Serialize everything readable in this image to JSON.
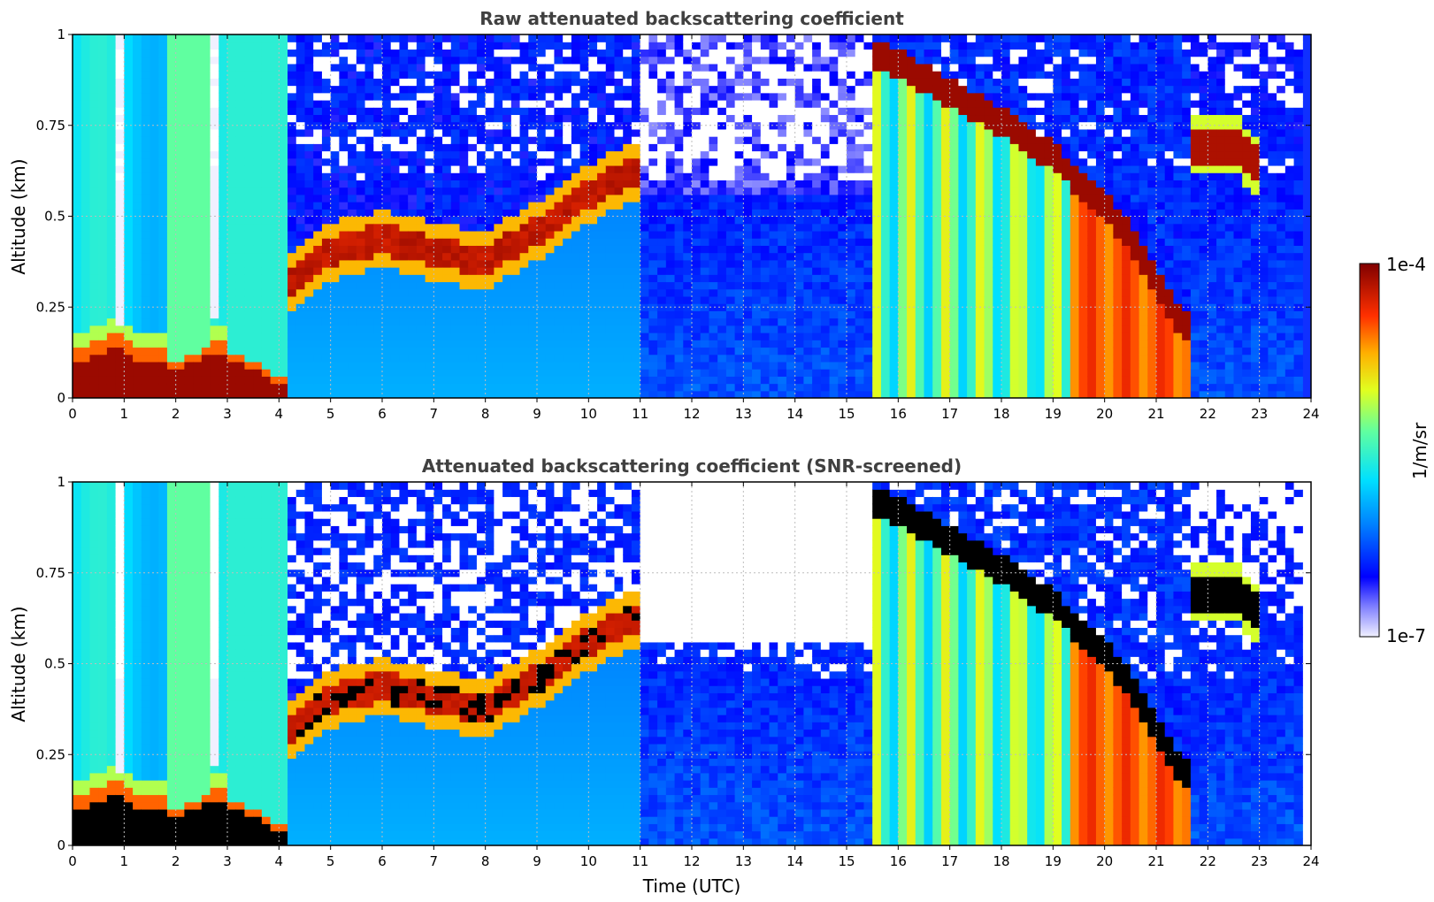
{
  "chart_data": [
    {
      "type": "heatmap",
      "title": "Raw attenuated backscattering coefficient",
      "xlabel": "",
      "ylabel": "Altitude (km)",
      "xlim": [
        0,
        24
      ],
      "ylim": [
        0,
        1
      ],
      "x_ticks": [
        0,
        1,
        2,
        3,
        4,
        5,
        6,
        7,
        8,
        9,
        10,
        11,
        12,
        13,
        14,
        15,
        16,
        17,
        18,
        19,
        20,
        21,
        22,
        23,
        24
      ],
      "y_ticks": [
        0,
        0.25,
        0.5,
        0.75,
        1
      ],
      "y_tick_labels": [
        "0",
        "0.25",
        "0.5",
        "0.75",
        "1"
      ],
      "grid": true,
      "screened": false,
      "features": [
        {
          "kind": "boundary_layer_top",
          "x": [
            0,
            0.5,
            0.8,
            1.2,
            1.6,
            2.0,
            2.4,
            2.8,
            3.2,
            3.6,
            4.0
          ],
          "y": [
            0.12,
            0.14,
            0.16,
            0.13,
            0.12,
            0.1,
            0.12,
            0.15,
            0.12,
            0.1,
            0.06
          ]
        },
        {
          "kind": "elevated_layer",
          "x": [
            4.3,
            5,
            6,
            7,
            8,
            9,
            10,
            10.8
          ],
          "y": [
            0.32,
            0.4,
            0.44,
            0.4,
            0.38,
            0.46,
            0.56,
            0.62
          ]
        },
        {
          "kind": "descending_cloud",
          "x": [
            15.6,
            16.5,
            17.5,
            18.5,
            19.5,
            20.5,
            21.5
          ],
          "y": [
            0.95,
            0.88,
            0.8,
            0.72,
            0.6,
            0.45,
            0.2
          ]
        },
        {
          "kind": "cloud_patch",
          "x": [
            22,
            22.5,
            23
          ],
          "y": [
            0.7,
            0.7,
            0.64
          ]
        }
      ]
    },
    {
      "type": "heatmap",
      "title": "Attenuated backscattering coefficient (SNR-screened)",
      "xlabel": "Time (UTC)",
      "ylabel": "Altitude (km)",
      "xlim": [
        0,
        24
      ],
      "ylim": [
        0,
        1
      ],
      "x_ticks": [
        0,
        1,
        2,
        3,
        4,
        5,
        6,
        7,
        8,
        9,
        10,
        11,
        12,
        13,
        14,
        15,
        16,
        17,
        18,
        19,
        20,
        21,
        22,
        23,
        24
      ],
      "y_ticks": [
        0,
        0.25,
        0.5,
        0.75,
        1
      ],
      "y_tick_labels": [
        "0",
        "0.25",
        "0.5",
        "0.75",
        "1"
      ],
      "grid": true,
      "screened": true,
      "features": [
        {
          "kind": "boundary_layer_top",
          "x": [
            0,
            0.5,
            0.8,
            1.2,
            1.6,
            2.0,
            2.4,
            2.8,
            3.2,
            3.6,
            4.0
          ],
          "y": [
            0.12,
            0.14,
            0.16,
            0.13,
            0.12,
            0.1,
            0.12,
            0.15,
            0.12,
            0.1,
            0.06
          ]
        },
        {
          "kind": "elevated_layer",
          "x": [
            4.3,
            5,
            6,
            7,
            8,
            9,
            10,
            10.8
          ],
          "y": [
            0.32,
            0.4,
            0.44,
            0.4,
            0.38,
            0.46,
            0.56,
            0.62
          ]
        },
        {
          "kind": "descending_cloud",
          "x": [
            15.6,
            16.5,
            17.5,
            18.5,
            19.5,
            20.5,
            21.5
          ],
          "y": [
            0.95,
            0.88,
            0.8,
            0.72,
            0.6,
            0.45,
            0.2
          ]
        },
        {
          "kind": "cloud_patch",
          "x": [
            22,
            22.5,
            23
          ],
          "y": [
            0.7,
            0.7,
            0.64
          ]
        }
      ]
    }
  ],
  "colorbar": {
    "label": "1/m/sr",
    "max_label": "1e-4",
    "min_label": "1e-7",
    "scale": "log",
    "range": [
      1e-07,
      0.0001
    ],
    "colormap": "jet"
  }
}
